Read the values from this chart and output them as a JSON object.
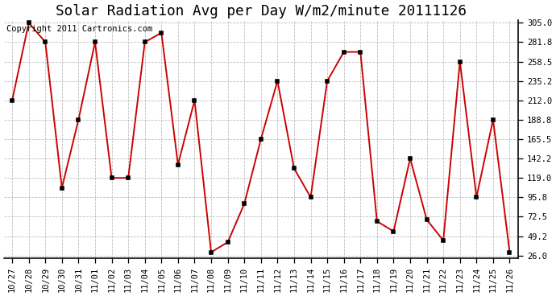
{
  "title": "Solar Radiation Avg per Day W/m2/minute 20111126",
  "copyright_text": "Copyright 2011 Cartronics.com",
  "x_labels": [
    "10/27",
    "10/28",
    "10/29",
    "10/30",
    "10/31",
    "11/01",
    "11/02",
    "11/03",
    "11/04",
    "11/05",
    "11/06",
    "11/07",
    "11/08",
    "11/09",
    "11/10",
    "11/11",
    "11/12",
    "11/13",
    "11/14",
    "11/15",
    "11/16",
    "11/17",
    "11/18",
    "11/19",
    "11/20",
    "11/21",
    "11/22",
    "11/23",
    "11/24",
    "11/25",
    "11/26"
  ],
  "y_values": [
    212.0,
    305.0,
    281.8,
    107.0,
    188.8,
    281.8,
    119.0,
    119.0,
    281.8,
    293.0,
    135.0,
    212.0,
    30.0,
    42.0,
    88.0,
    165.5,
    235.2,
    130.5,
    95.8,
    235.2,
    270.0,
    270.0,
    67.0,
    55.0,
    142.2,
    69.0,
    44.0,
    258.5,
    95.8,
    188.8,
    30.0
  ],
  "line_color": "#cc0000",
  "marker_color": "#000000",
  "bg_color": "#ffffff",
  "plot_bg_color": "#ffffff",
  "grid_color": "#bbbbbb",
  "y_min": 26.0,
  "y_max": 305.0,
  "y_ticks": [
    26.0,
    49.2,
    72.5,
    95.8,
    119.0,
    142.2,
    165.5,
    188.8,
    212.0,
    235.2,
    258.5,
    281.8,
    305.0
  ],
  "title_fontsize": 11,
  "tick_fontsize": 6.5,
  "copyright_fontsize": 6.5
}
